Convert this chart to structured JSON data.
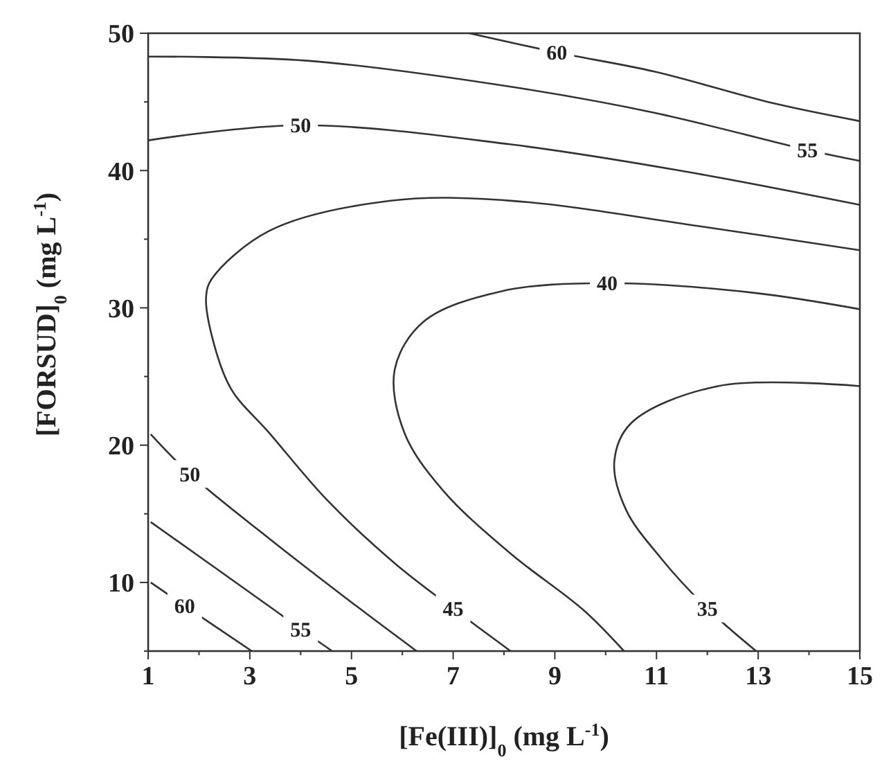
{
  "chart_data": {
    "type": "line",
    "xlabel": "[Fe(III)]$_{0}$ (mg L$^{-1}$)",
    "ylabel": "[FORSUD]$_{0}$ (mg L$^{-1}$)",
    "xlim": [
      1,
      15
    ],
    "ylim": [
      5,
      50
    ],
    "xticks": [
      1,
      {
        "value": 2,
        "label": null
      },
      3,
      {
        "value": 4,
        "label": null
      },
      5,
      {
        "value": 6,
        "label": null
      },
      7,
      {
        "value": 8,
        "label": null
      },
      9,
      {
        "value": 10,
        "label": null
      },
      11,
      {
        "value": 12,
        "label": null
      },
      13,
      {
        "value": 14,
        "label": null
      },
      15
    ],
    "yticks": [
      {
        "value": 5,
        "label": null
      },
      10,
      {
        "value": 15,
        "label": null
      },
      20,
      {
        "value": 25,
        "label": null
      },
      30,
      {
        "value": 35,
        "label": null
      },
      40,
      {
        "value": 45,
        "label": null
      },
      50
    ],
    "grid": false,
    "marker": "none",
    "line_style": "solid",
    "series": [
      {
        "color": "#333333",
        "x": [
          7.32,
          9.04,
          10.97,
          13.3,
          15
        ],
        "values": [
          50,
          48.6,
          47.2,
          44.9,
          43.6
        ]
      },
      {
        "color": "#333333",
        "x": [
          1,
          4.13,
          8.14,
          10.97,
          13.97,
          15
        ],
        "values": [
          48.3,
          48.0,
          46.1,
          44.2,
          41.5,
          40.7
        ]
      },
      {
        "color": "#333333",
        "x": [
          1,
          4.0,
          8.14,
          11.46,
          15
        ],
        "values": [
          42.2,
          43.3,
          41.9,
          40.0,
          37.5
        ]
      },
      {
        "color": "#333333",
        "x": [
          15,
          11.93,
          8.14,
          5.77,
          3.38,
          2.25,
          2.14,
          2.25,
          2.63,
          3.38,
          4.52,
          5.85,
          7.0,
          8.13
        ],
        "values": [
          34.2,
          35.9,
          37.8,
          37.8,
          35.6,
          32.1,
          30.8,
          28.0,
          24.1,
          20.9,
          16.0,
          11.4,
          8.1,
          5
        ]
      },
      {
        "color": "#333333",
        "x": [
          15,
          12.9,
          10.03,
          7.94,
          6.42,
          5.85,
          6.04,
          6.8,
          8.13,
          9.56,
          10.36
        ],
        "values": [
          29.9,
          31.1,
          31.8,
          31.2,
          29.0,
          25.5,
          20.9,
          16.7,
          12.1,
          8.0,
          5
        ]
      },
      {
        "color": "#333333",
        "x": [
          15,
          12.21,
          10.5,
          10.17,
          10.4,
          11.08,
          12.0,
          12.96
        ],
        "values": [
          24.3,
          24.3,
          21.6,
          18.8,
          15.3,
          11.8,
          8.1,
          5
        ]
      },
      {
        "color": "#333333",
        "x": [
          1.05,
          1.82,
          3.38,
          5.09,
          6.28
        ],
        "values": [
          20.8,
          17.9,
          13.2,
          8.3,
          5
        ]
      },
      {
        "color": "#333333",
        "x": [
          1.05,
          3.48,
          4.0,
          4.62
        ],
        "values": [
          14.4,
          8.0,
          6.6,
          5
        ]
      },
      {
        "color": "#333333",
        "x": [
          1.05,
          1.72,
          3.04
        ],
        "values": [
          10.0,
          8.3,
          5
        ]
      }
    ],
    "annotations": [
      {
        "text": "60",
        "x": 9.04,
        "y": 48.6
      },
      {
        "text": "55",
        "x": 13.97,
        "y": 41.5
      },
      {
        "text": "50",
        "x": 4.0,
        "y": 43.3
      },
      {
        "text": "40",
        "x": 10.03,
        "y": 31.8
      },
      {
        "text": "45",
        "x": 7.0,
        "y": 8.1
      },
      {
        "text": "35",
        "x": 12.0,
        "y": 8.1
      },
      {
        "text": "50",
        "x": 1.82,
        "y": 17.9
      },
      {
        "text": "55",
        "x": 4.0,
        "y": 6.6
      },
      {
        "text": "60",
        "x": 1.72,
        "y": 8.3
      }
    ]
  }
}
